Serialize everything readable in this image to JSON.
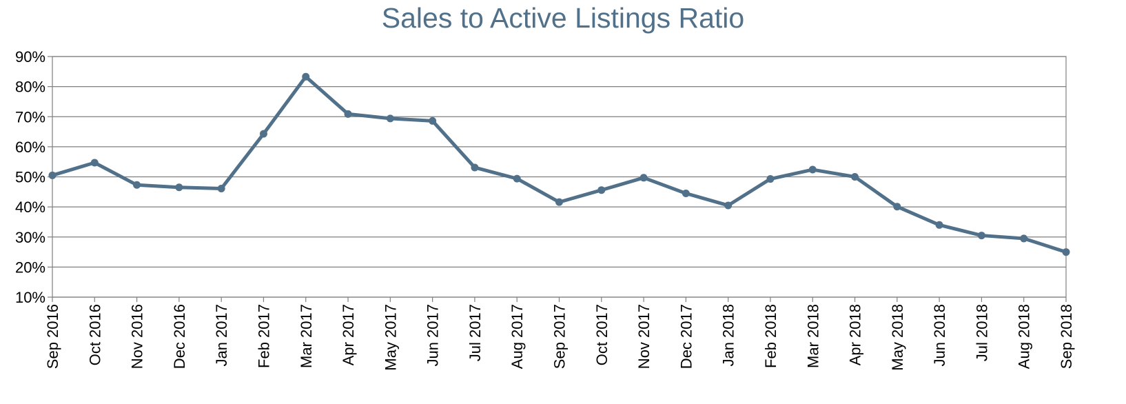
{
  "chart_data": {
    "type": "line",
    "title": "Sales to Active Listings Ratio",
    "xlabel": "",
    "ylabel": "",
    "ylim": [
      10,
      90
    ],
    "y_ticks": [
      10,
      20,
      30,
      40,
      50,
      60,
      70,
      80,
      90
    ],
    "y_tick_labels": [
      "10%",
      "20%",
      "30%",
      "40%",
      "50%",
      "60%",
      "70%",
      "80%",
      "90%"
    ],
    "grid": true,
    "legend": "none",
    "categories": [
      "Sep 2016",
      "Oct 2016",
      "Nov 2016",
      "Dec 2016",
      "Jan 2017",
      "Feb 2017",
      "Mar 2017",
      "Apr 2017",
      "May 2017",
      "Jun 2017",
      "Jul 2017",
      "Aug 2017",
      "Sep 2017",
      "Oct 2017",
      "Nov 2017",
      "Dec 2017",
      "Jan 2018",
      "Feb 2018",
      "Mar 2018",
      "Apr 2018",
      "May 2018",
      "Jun 2018",
      "Jul 2018",
      "Aug 2018",
      "Sep 2018"
    ],
    "series": [
      {
        "color": "#51708a",
        "values": [
          50.5,
          54.7,
          47.3,
          46.5,
          46.1,
          64.3,
          83.3,
          70.9,
          69.4,
          68.6,
          53.1,
          49.4,
          41.6,
          45.6,
          49.7,
          44.5,
          40.5,
          49.3,
          52.4,
          50.0,
          40.1,
          34.0,
          30.5,
          29.5,
          25.0
        ]
      }
    ],
    "colors": {
      "line": "#51708a",
      "title": "#51708a",
      "grid": "#7f7f7f",
      "axis": "#7f7f7f"
    }
  }
}
